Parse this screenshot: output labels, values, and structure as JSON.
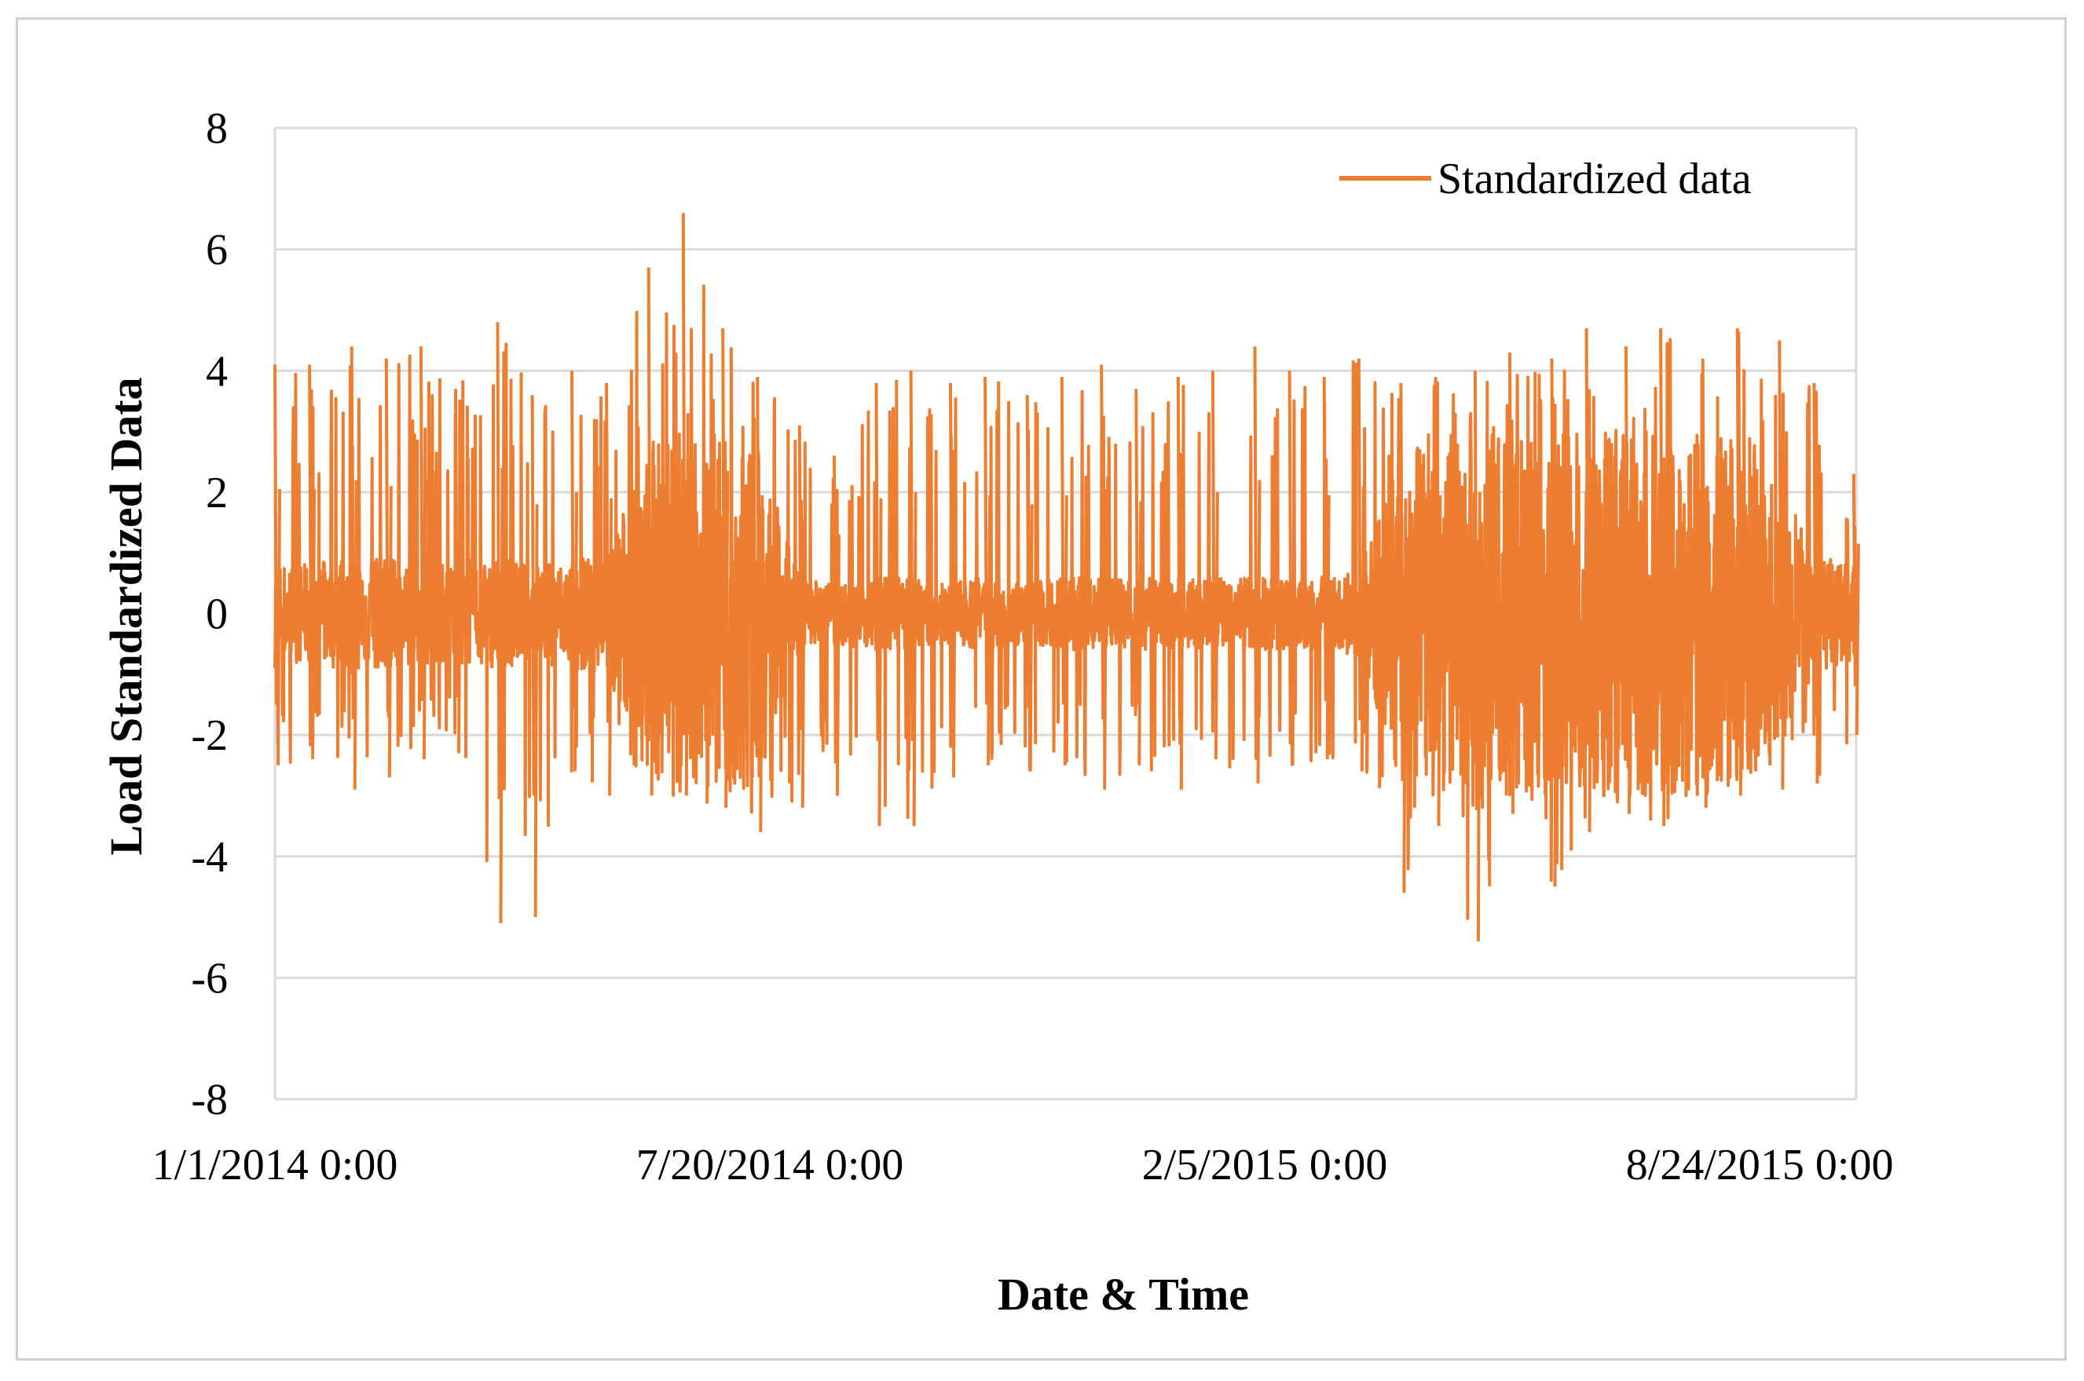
{
  "chart_data": {
    "type": "line",
    "title": "",
    "xlabel": "Date & Time",
    "ylabel": "Load Standardized Data",
    "ylim": [
      -8,
      8
    ],
    "yticks": [
      8,
      6,
      4,
      2,
      0,
      -2,
      -4,
      -6,
      -8
    ],
    "xlim": [
      "1/1/2014 0:00",
      "10/2/2015 0:00"
    ],
    "xtick_labels": [
      "1/1/2014 0:00",
      "7/20/2014 0:00",
      "2/5/2015 0:00",
      "8/24/2015 0:00"
    ],
    "grid": true,
    "legend_position": "top-right",
    "series": [
      {
        "name": "Standardized data",
        "color": "#ED7D31",
        "dates": [
          "1/1/2014",
          "1/15/2014",
          "2/1/2014",
          "2/15/2014",
          "3/1/2014",
          "3/15/2014",
          "4/1/2014",
          "4/15/2014",
          "5/1/2014",
          "5/15/2014",
          "6/1/2014",
          "6/15/2014",
          "7/1/2014",
          "7/15/2014",
          "8/1/2014",
          "8/15/2014",
          "9/1/2014",
          "9/15/2014",
          "10/1/2014",
          "10/15/2014",
          "11/1/2014",
          "11/15/2014",
          "12/1/2014",
          "12/15/2014",
          "1/1/2015",
          "1/15/2015",
          "2/1/2015",
          "2/15/2015",
          "3/1/2015",
          "3/15/2015",
          "4/1/2015",
          "4/15/2015",
          "5/1/2015",
          "5/15/2015",
          "6/1/2015",
          "6/15/2015",
          "7/1/2015",
          "7/15/2015",
          "8/1/2015",
          "8/15/2015",
          "9/1/2015",
          "9/15/2015",
          "10/1/2015"
        ],
        "max": [
          4.1,
          4.1,
          4.4,
          4.2,
          4.4,
          3.7,
          4.8,
          3.6,
          4.0,
          3.8,
          5.7,
          6.6,
          4.7,
          3.9,
          3.1,
          2.6,
          3.8,
          4.0,
          3.8,
          3.9,
          3.6,
          3.9,
          4.1,
          3.7,
          3.9,
          4.0,
          4.4,
          4.0,
          3.9,
          4.2,
          3.8,
          3.9,
          4.0,
          4.3,
          4.2,
          4.7,
          4.4,
          4.7,
          4.2,
          4.7,
          4.5,
          3.8,
          2.3
        ],
        "min": [
          -2.5,
          -2.4,
          -2.9,
          -2.7,
          -2.4,
          -2.3,
          -5.1,
          -5.0,
          -2.6,
          -3.0,
          -3.0,
          -3.0,
          -3.2,
          -3.6,
          -3.2,
          -3.0,
          -3.5,
          -3.5,
          -2.7,
          -2.5,
          -2.6,
          -2.5,
          -2.9,
          -2.5,
          -2.9,
          -2.4,
          -2.8,
          -2.5,
          -2.4,
          -2.6,
          -4.6,
          -3.5,
          -5.4,
          -3.3,
          -4.5,
          -3.6,
          -3.3,
          -3.5,
          -3.2,
          -3.0,
          -2.9,
          -2.8,
          -2.0
        ],
        "typical_band": [
          0.9,
          0.8,
          1.0,
          0.9,
          0.8,
          0.9,
          0.9,
          0.8,
          0.9,
          1.0,
          2.8,
          3.0,
          3.0,
          2.8,
          0.6,
          0.5,
          0.6,
          0.6,
          0.5,
          0.6,
          0.5,
          0.6,
          0.6,
          0.6,
          0.6,
          0.6,
          0.6,
          0.6,
          0.6,
          0.7,
          2.8,
          2.9,
          2.9,
          3.0,
          3.0,
          3.0,
          3.0,
          3.0,
          3.0,
          2.9,
          2.2,
          1.0,
          0.8
        ]
      }
    ]
  }
}
